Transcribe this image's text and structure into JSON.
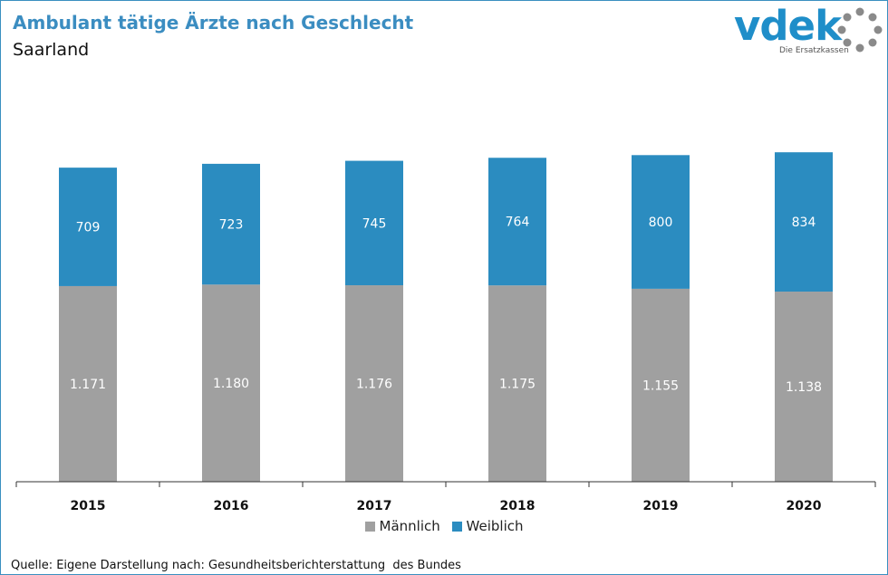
{
  "header": {
    "title": "Ambulant tätige Ärzte nach Geschlecht",
    "subtitle": "Saarland"
  },
  "logo": {
    "text": "vdek",
    "tagline": "Die Ersatzkassen",
    "brand_color": "#1f8ec9"
  },
  "source": "Quelle: Eigene Darstellung nach: Gesundheitsberichterstattung  des Bundes",
  "chart_data": {
    "type": "bar",
    "stacked": true,
    "title": "Ambulant tätige Ärzte nach Geschlecht",
    "subtitle": "Saarland",
    "categories": [
      "2015",
      "2016",
      "2017",
      "2018",
      "2019",
      "2020"
    ],
    "series": [
      {
        "name": "Männlich",
        "color": "#a0a0a0",
        "values": [
          1171,
          1180,
          1176,
          1175,
          1155,
          1138
        ],
        "labels": [
          "1.171",
          "1.180",
          "1.176",
          "1.175",
          "1.155",
          "1.138"
        ]
      },
      {
        "name": "Weiblich",
        "color": "#2b8cc0",
        "values": [
          709,
          723,
          745,
          764,
          800,
          834
        ],
        "labels": [
          "709",
          "723",
          "745",
          "764",
          "800",
          "834"
        ]
      }
    ],
    "ylim": [
      0,
      2000
    ],
    "grid": false,
    "legend": "bottom"
  }
}
